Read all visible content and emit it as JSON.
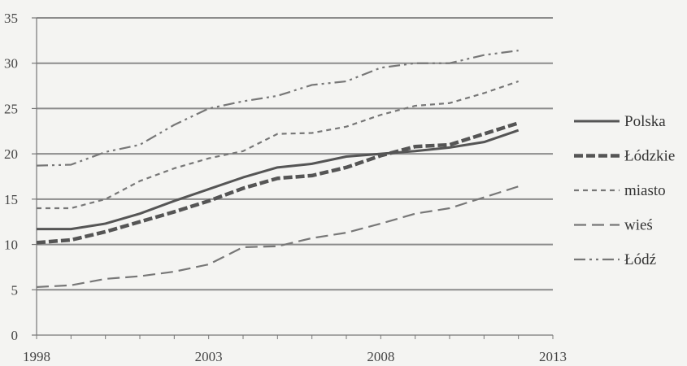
{
  "chart_data": {
    "type": "line",
    "title": "",
    "xlabel": "",
    "ylabel": "",
    "xlim": [
      1998,
      2013
    ],
    "ylim": [
      0,
      35
    ],
    "x_ticks": [
      1998,
      2003,
      2008,
      2013
    ],
    "y_ticks": [
      0,
      5,
      10,
      15,
      20,
      25,
      30,
      35
    ],
    "grid": "horizontal",
    "legend_position": "right",
    "x": [
      1998,
      1999,
      2000,
      2001,
      2002,
      2003,
      2004,
      2005,
      2006,
      2007,
      2008,
      2009,
      2010,
      2011,
      2012
    ],
    "series": [
      {
        "name": "Polska",
        "style": "solid",
        "color": "#555555",
        "values": [
          11.7,
          11.7,
          12.3,
          13.4,
          14.8,
          16.1,
          17.4,
          18.5,
          18.9,
          19.7,
          20.0,
          20.3,
          20.7,
          21.3,
          22.6
        ]
      },
      {
        "name": "Łódzkie",
        "style": "dash-bold",
        "color": "#555555",
        "values": [
          10.2,
          10.5,
          11.4,
          12.5,
          13.6,
          14.8,
          16.2,
          17.3,
          17.6,
          18.5,
          19.8,
          20.8,
          21.0,
          22.2,
          23.4
        ]
      },
      {
        "name": "miasto",
        "style": "short-dash",
        "color": "#777777",
        "values": [
          14.0,
          14.0,
          15.0,
          17.0,
          18.4,
          19.5,
          20.3,
          22.2,
          22.3,
          23.0,
          24.3,
          25.3,
          25.6,
          26.7,
          28.0
        ]
      },
      {
        "name": "wieś",
        "style": "long-dash",
        "color": "#777777",
        "values": [
          5.3,
          5.5,
          6.2,
          6.5,
          7.0,
          7.8,
          9.7,
          9.8,
          10.7,
          11.3,
          12.3,
          13.4,
          14.0,
          15.2,
          16.4
        ]
      },
      {
        "name": "Łódź",
        "style": "dash-dot-dot",
        "color": "#777777",
        "values": [
          18.7,
          18.8,
          20.2,
          21.0,
          23.2,
          25.0,
          25.8,
          26.4,
          27.6,
          28.0,
          29.5,
          30.0,
          30.0,
          30.9,
          31.4
        ]
      }
    ]
  },
  "colors": {
    "background": "#f4f4f2",
    "gridline": "#8c8c8c",
    "axis": "#777777",
    "text": "#333333"
  }
}
